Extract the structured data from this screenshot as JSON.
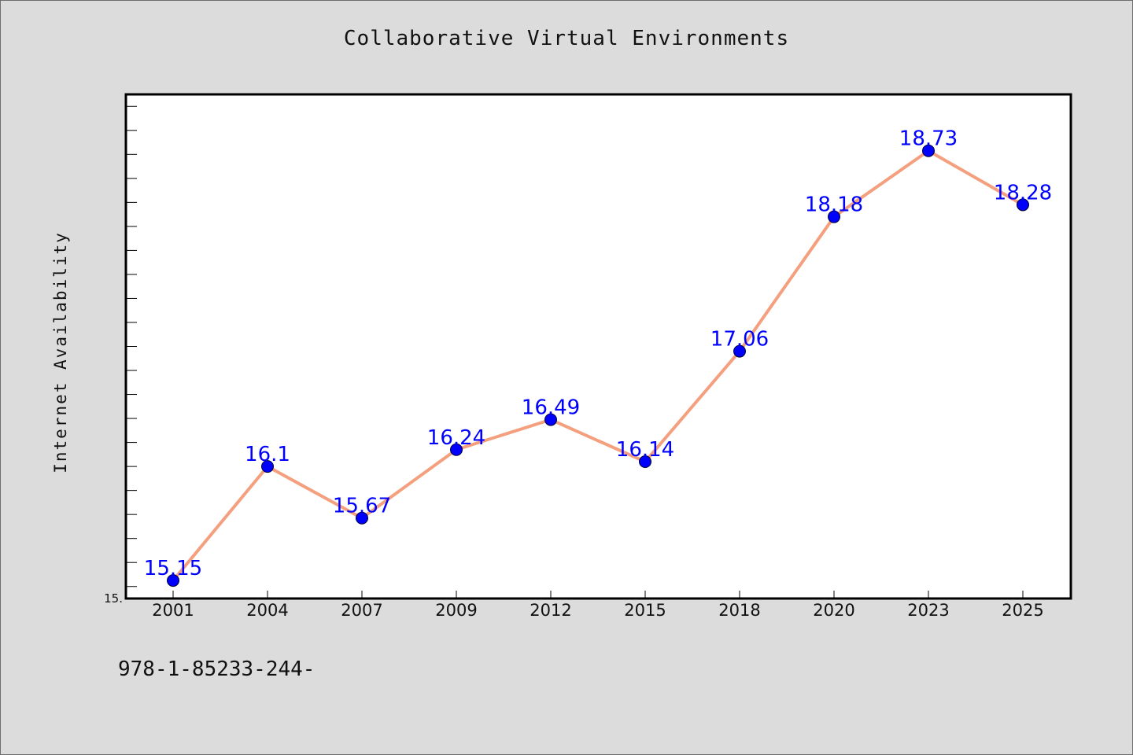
{
  "chart_data": {
    "type": "line",
    "title": "Collaborative Virtual Environments",
    "xlabel": "",
    "ylabel": "Internet Availability",
    "categories": [
      "2001",
      "2004",
      "2007",
      "2009",
      "2012",
      "2015",
      "2018",
      "2020",
      "2023",
      "2025"
    ],
    "series": [
      {
        "values": [
          15.15,
          16.1,
          15.67,
          16.24,
          16.49,
          16.14,
          17.06,
          18.18,
          18.73,
          18.28
        ],
        "labels": [
          "15.15",
          "16.1",
          "15.67",
          "16.24",
          "16.49",
          "16.14",
          "17.06",
          "18.18",
          "18.73",
          "18.28"
        ],
        "line_color": "#f4a07f",
        "marker_color": "#0000ff"
      }
    ],
    "ylim": [
      15.0,
      19.2
    ],
    "y_min_label": "15.",
    "grid": false,
    "legend": "none"
  },
  "footnote": "978-1-85233-244-"
}
